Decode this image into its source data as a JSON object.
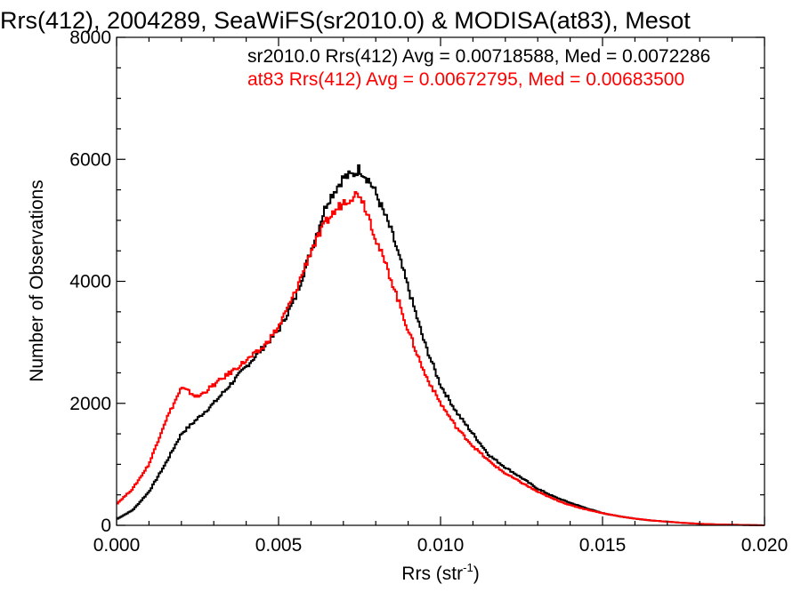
{
  "chart_data": {
    "type": "line",
    "title": "Rrs(412), 2004289, SeaWiFS(sr2010.0) & MODISA(at83), Mesot",
    "xlabel_main": "Rrs (str",
    "xlabel_sup": "-1",
    "xlabel_end": ")",
    "ylabel": "Number of Observations",
    "xlim": [
      0.0,
      0.02
    ],
    "ylim": [
      0,
      8000
    ],
    "xticks": [
      {
        "value": 0.0,
        "label": "0.000"
      },
      {
        "value": 0.005,
        "label": "0.005"
      },
      {
        "value": 0.01,
        "label": "0.010"
      },
      {
        "value": 0.015,
        "label": "0.015"
      },
      {
        "value": 0.02,
        "label": "0.020"
      }
    ],
    "yticks": [
      {
        "value": 0,
        "label": "0"
      },
      {
        "value": 2000,
        "label": "2000"
      },
      {
        "value": 4000,
        "label": "4000"
      },
      {
        "value": 6000,
        "label": "6000"
      },
      {
        "value": 8000,
        "label": "8000"
      }
    ],
    "grid": false,
    "series": [
      {
        "name": "sr2010.0",
        "color": "#000000",
        "annotation": "sr2010.0 Rrs(412) Avg = 0.00718588, Med = 0.0072286",
        "x": [
          0.0,
          0.0005,
          0.001,
          0.0015,
          0.002,
          0.0025,
          0.003,
          0.0035,
          0.004,
          0.0045,
          0.005,
          0.0055,
          0.006,
          0.0065,
          0.007,
          0.0073,
          0.0075,
          0.0078,
          0.008,
          0.0085,
          0.009,
          0.0095,
          0.01,
          0.0105,
          0.011,
          0.0115,
          0.012,
          0.0125,
          0.013,
          0.0135,
          0.014,
          0.0145,
          0.015,
          0.0155,
          0.016,
          0.0165,
          0.017,
          0.0175,
          0.018,
          0.0185,
          0.019,
          0.0195,
          0.02
        ],
        "y": [
          100,
          250,
          550,
          1000,
          1500,
          1750,
          2000,
          2300,
          2600,
          2900,
          3200,
          3700,
          4500,
          5300,
          5700,
          5750,
          5850,
          5650,
          5450,
          4800,
          3900,
          3000,
          2300,
          1850,
          1500,
          1150,
          950,
          780,
          600,
          470,
          370,
          280,
          200,
          150,
          110,
          80,
          60,
          40,
          25,
          15,
          10,
          5,
          0
        ]
      },
      {
        "name": "at83",
        "color": "#ff0000",
        "annotation": "at83 Rrs(412) Avg = 0.00672795, Med = 0.00683500",
        "x": [
          0.0,
          0.0005,
          0.001,
          0.0015,
          0.002,
          0.0022,
          0.0025,
          0.003,
          0.0035,
          0.004,
          0.0045,
          0.005,
          0.0055,
          0.006,
          0.0065,
          0.007,
          0.0073,
          0.0075,
          0.0078,
          0.008,
          0.0085,
          0.009,
          0.0095,
          0.01,
          0.0105,
          0.011,
          0.0115,
          0.012,
          0.0125,
          0.013,
          0.0135,
          0.014,
          0.0145,
          0.015,
          0.0155,
          0.016,
          0.0165,
          0.017,
          0.0175,
          0.018,
          0.0185,
          0.019,
          0.0195,
          0.02
        ],
        "y": [
          350,
          600,
          1000,
          1700,
          2250,
          2200,
          2100,
          2300,
          2500,
          2700,
          2900,
          3250,
          3800,
          4500,
          5000,
          5300,
          5400,
          5450,
          5050,
          4700,
          4000,
          3200,
          2500,
          2000,
          1600,
          1300,
          1050,
          850,
          700,
          550,
          430,
          330,
          260,
          200,
          150,
          110,
          80,
          60,
          40,
          25,
          15,
          10,
          5,
          0
        ]
      }
    ]
  }
}
